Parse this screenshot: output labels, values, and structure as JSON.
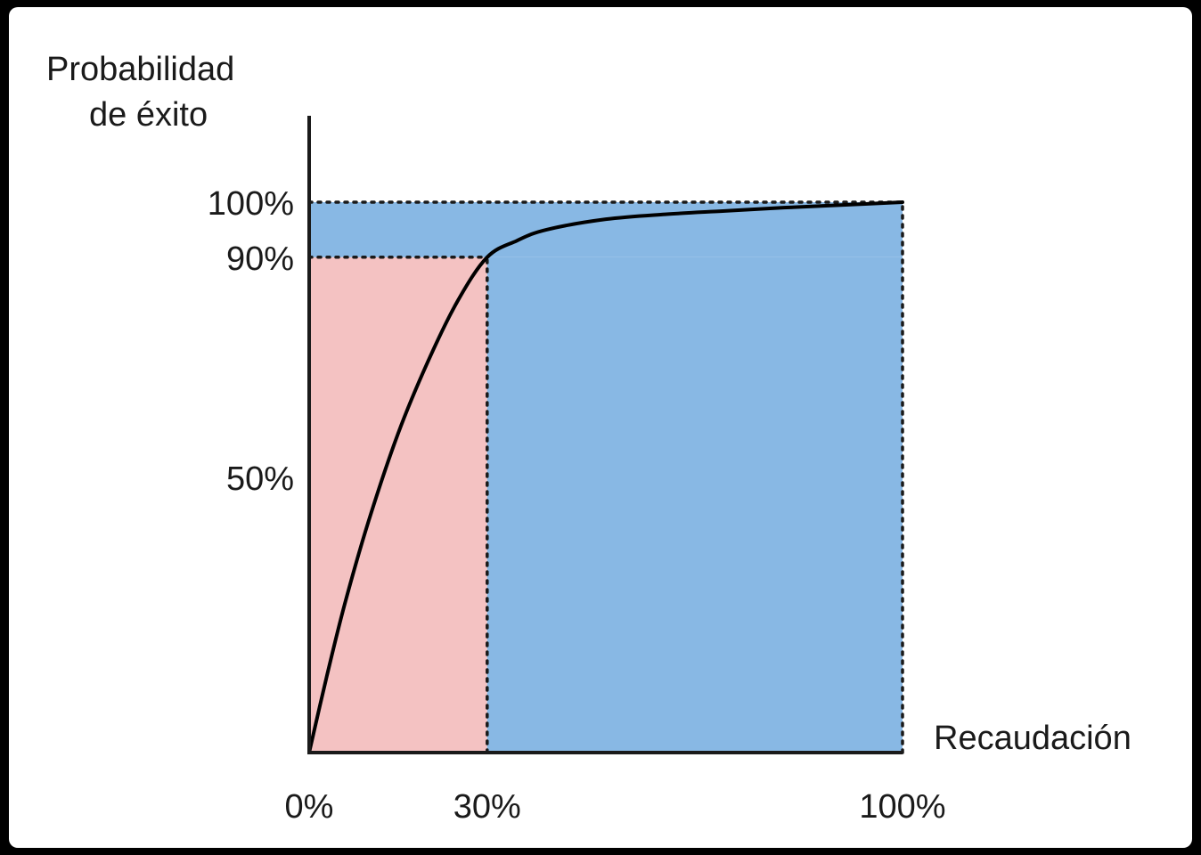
{
  "chart_data": {
    "type": "area",
    "ylabel_lines": [
      "Probabilidad",
      "de éxito"
    ],
    "xlabel": "Recaudación",
    "x_ticks": [
      {
        "value": 0,
        "label": "0%"
      },
      {
        "value": 30,
        "label": "30%"
      },
      {
        "value": 100,
        "label": "100%"
      }
    ],
    "y_ticks": [
      {
        "value": 50,
        "label": "50%"
      },
      {
        "value": 90,
        "label": "90%"
      },
      {
        "value": 100,
        "label": "100%"
      }
    ],
    "xlim": [
      0,
      100
    ],
    "ylim": [
      0,
      100
    ],
    "curve": {
      "x": [
        0,
        3,
        6,
        10,
        15,
        20,
        25,
        30,
        35,
        40,
        50,
        60,
        70,
        80,
        90,
        100
      ],
      "y": [
        0,
        14,
        27,
        42,
        58,
        71,
        82,
        90,
        93,
        95,
        96.9,
        97.8,
        98.4,
        99.0,
        99.5,
        100
      ]
    },
    "regions": [
      {
        "x": [
          0,
          30
        ],
        "y": [
          0,
          90
        ],
        "color": "#f4c2c2"
      },
      {
        "x": [
          0,
          100
        ],
        "y": [
          90,
          100
        ],
        "color": "#88b8e4"
      },
      {
        "x": [
          30,
          100
        ],
        "y": [
          0,
          90
        ],
        "color": "#88b8e4"
      }
    ],
    "reference_lines": [
      {
        "type": "horizontal",
        "y": 100,
        "x_end": 100
      },
      {
        "type": "horizontal",
        "y": 90,
        "x_end": 30
      },
      {
        "type": "vertical",
        "x": 30,
        "y_end": 90
      },
      {
        "type": "vertical",
        "x": 100,
        "y_end": 100
      }
    ],
    "colors": {
      "curve": "#000000",
      "axis": "#1a1a1a",
      "reference_line": "#1a1a1a"
    },
    "grid": false,
    "legend": "none"
  }
}
